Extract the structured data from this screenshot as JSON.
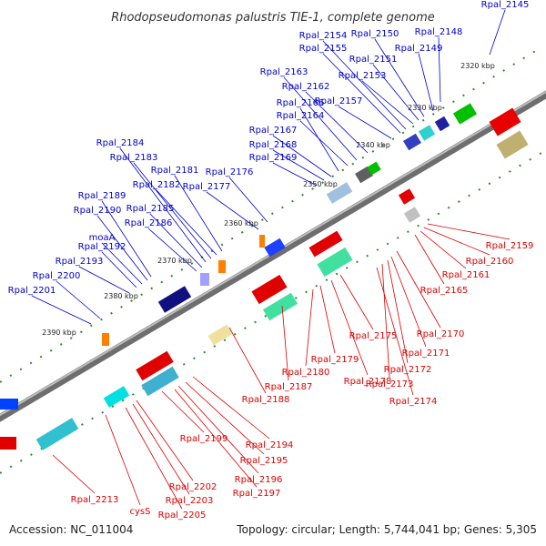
{
  "title": "Rhodopseudomonas palustris TIE-1, complete genome",
  "footer": {
    "accession": "Accession: NC_011004",
    "summary": "Topology: circular; Length: 5,744,041 bp; Genes: 5,305"
  },
  "colors": {
    "forward_label": "#0000cc",
    "reverse_label": "#dd0000",
    "backbone": "#8a8a8a",
    "tick": "#2e8b2e"
  },
  "kbp_ticks": [
    "2320 kbp",
    "2330 kbp",
    "2340 kbp",
    "2350 kbp",
    "2360 kbp",
    "2370 kbp",
    "2380 kbp",
    "2390 kbp"
  ],
  "forward_genes": [
    "Rpal_2145",
    "Rpal_2148",
    "Rpal_2149",
    "Rpal_2150",
    "Rpal_2151",
    "Rpal_2153",
    "Rpal_2154",
    "Rpal_2155",
    "Rpal_2157",
    "Rpal_2162",
    "Rpal_2163",
    "Rpal_2164",
    "Rpal_2166",
    "Rpal_2167",
    "Rpal_2168",
    "Rpal_2169",
    "Rpal_2176",
    "Rpal_2177",
    "Rpal_2181",
    "Rpal_2182",
    "Rpal_2183",
    "Rpal_2184",
    "Rpal_2185",
    "Rpal_2186",
    "Rpal_2189",
    "Rpal_2190",
    "moaA",
    "Rpal_2192",
    "Rpal_2193",
    "Rpal_2200",
    "Rpal_2201"
  ],
  "reverse_genes": [
    "Rpal_2159",
    "Rpal_2160",
    "Rpal_2161",
    "Rpal_2165",
    "Rpal_2170",
    "Rpal_2171",
    "Rpal_2172",
    "Rpal_2173",
    "Rpal_2174",
    "Rpal_2175",
    "Rpal_2178",
    "Rpal_2179",
    "Rpal_2180",
    "Rpal_2187",
    "Rpal_2188",
    "Rpal_2194",
    "Rpal_2195",
    "Rpal_2196",
    "Rpal_2197",
    "Rpal_2199",
    "Rpal_2202",
    "Rpal_2203",
    "Rpal_2205",
    "cysS",
    "Rpal_2213"
  ]
}
